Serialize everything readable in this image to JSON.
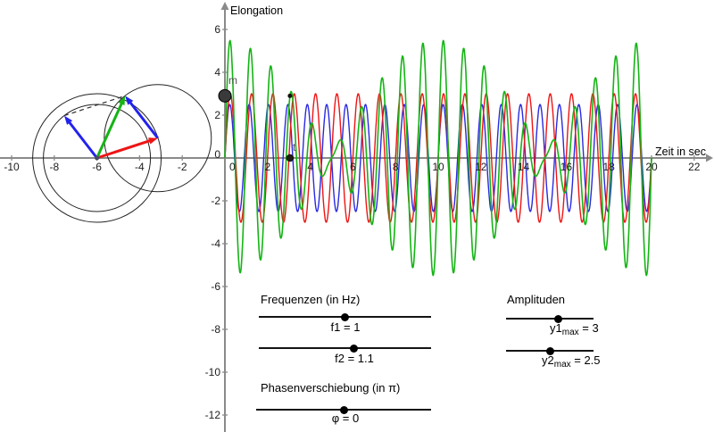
{
  "labels": {
    "y_axis": "Elongation",
    "x_axis": "Zeit in sec",
    "m": "m",
    "t": "t"
  },
  "axes": {
    "x_ticks": [
      -10,
      -8,
      -6,
      -4,
      -2,
      0,
      2,
      4,
      6,
      8,
      10,
      12,
      14,
      16,
      18,
      20,
      22
    ],
    "y_ticks": [
      6,
      4,
      2,
      0,
      -2,
      -4,
      -6,
      -8,
      -10,
      -12
    ],
    "color": "#8a8a8a"
  },
  "chart_data": {
    "type": "line",
    "title": "",
    "xlabel": "Zeit in sec",
    "ylabel": "Elongation",
    "x_range": [
      0,
      20
    ],
    "x_axis_visible_range": [
      -10.6,
      23.1
    ],
    "y_axis_visible_range": [
      -12.8,
      7.4
    ],
    "grid": false,
    "params": {
      "f1_hz": 1,
      "f2_hz": 1.1,
      "y1max": 3,
      "y2max": 2.5,
      "phi_in_pi": 0,
      "t_marker": 3.05
    },
    "series": [
      {
        "name": "y2",
        "role": "component-wave-2",
        "formula": "y2max*sin(2*pi*f2*t + phi*pi)",
        "color": "#2a2ae0",
        "stroke_width": 1.4
      },
      {
        "name": "y1",
        "role": "component-wave-1",
        "formula": "y1max*sin(2*pi*f1*t)",
        "color": "#ee1515",
        "stroke_width": 1.4
      },
      {
        "name": "y1+y2",
        "role": "superposition-beat-wave",
        "formula": "y1(t)+y2(t)",
        "color": "#15b415",
        "stroke_width": 1.6
      }
    ],
    "points": [
      {
        "name": "m",
        "x": 0,
        "y": 2.9,
        "radius_px": 7,
        "color": "#3a3a3a",
        "note": "mass elongation on y-axis"
      },
      {
        "name": "t",
        "x": 3.05,
        "y": 0,
        "radius_px": 4,
        "color": "#221b15",
        "note": "time marker on x-axis"
      },
      {
        "name": "curve-marker",
        "x": 3.05,
        "y": 2.9,
        "radius_px": 2.5,
        "color": "#111111"
      }
    ],
    "phasor_diagram": {
      "center": [
        -6,
        0
      ],
      "static_circle_radii": [
        3,
        2.5
      ],
      "moving_circle_radius": 2.5,
      "vector_colors": {
        "v1_red": "#ee1515",
        "v2_blue": "#2222ee",
        "sum_green": "#15b415"
      },
      "dashed_line_color": "#333333",
      "center_dot_color": "#4a4a6a"
    }
  },
  "sliders": {
    "freq_title": "Frequenzen (in Hz)",
    "amp_title": "Amplituden",
    "phase_title": "Phasenverschiebung (in π)",
    "f1": {
      "label": "f1 = 1",
      "fraction": 0.5
    },
    "f2": {
      "label": "f2 = 1.1",
      "fraction": 0.55
    },
    "y1max": {
      "base": "y1",
      "sub": "max",
      "rest": " = 3",
      "fraction": 0.6
    },
    "y2max": {
      "base": "y2",
      "sub": "max",
      "rest": " = 2.5",
      "fraction": 0.5
    },
    "phi": {
      "label": "φ = 0",
      "fraction": 0.5
    }
  }
}
